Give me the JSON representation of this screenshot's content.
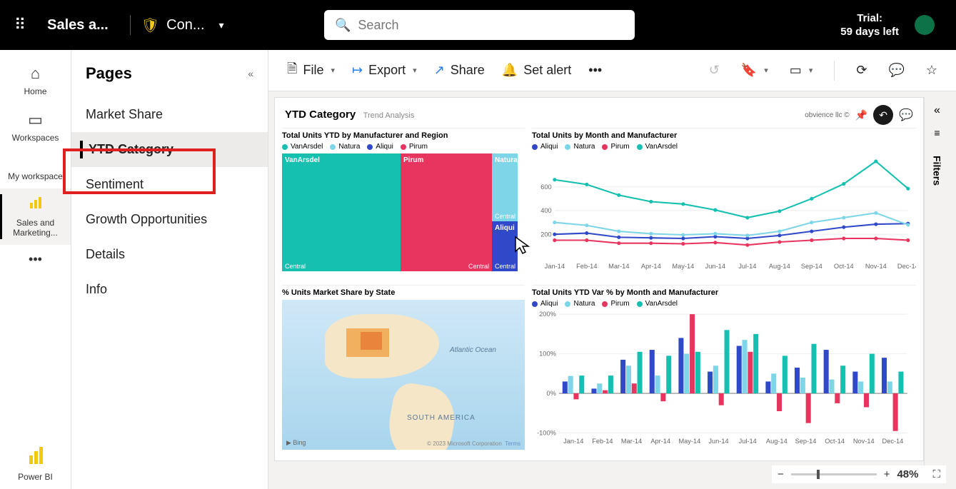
{
  "topbar": {
    "app_title": "Sales a...",
    "con_label": "Con...",
    "search_placeholder": "Search",
    "trial_line1": "Trial:",
    "trial_line2": "59 days left"
  },
  "navrail": {
    "home": "Home",
    "workspaces": "Workspaces",
    "my_workspace": "My workspace",
    "sales_marketing": "Sales and Marketing...",
    "powerbi": "Power BI"
  },
  "pages": {
    "title": "Pages",
    "items": [
      "Market Share",
      "YTD Category",
      "Sentiment",
      "Growth Opportunities",
      "Details",
      "Info"
    ],
    "selected_index": 1
  },
  "toolbar": {
    "file": "File",
    "export": "Export",
    "share": "Share",
    "set_alert": "Set alert"
  },
  "report": {
    "title": "YTD Category",
    "subtitle": "Trend Analysis",
    "attribution": "obvience llc ©"
  },
  "treemap_viz": {
    "title": "Total Units YTD by Manufacturer and Region",
    "legend": [
      {
        "label": "VanArsdel",
        "color": "#15c0b0"
      },
      {
        "label": "Natura",
        "color": "#7fd5e8"
      },
      {
        "label": "Aliqui",
        "color": "#3049c9"
      },
      {
        "label": "Pirum",
        "color": "#e8355f"
      }
    ],
    "cells": {
      "vanarsdel": {
        "label": "VanArsdel",
        "region": "Central",
        "color": "#15c0b0"
      },
      "natura": {
        "label": "Natura",
        "region": "Central",
        "color": "#7fd5e8"
      },
      "aliqui": {
        "label": "Aliqui",
        "region": "Central",
        "color": "#3049c9"
      },
      "pirum": {
        "label": "Pirum",
        "region": "Central",
        "color": "#e8355f"
      }
    }
  },
  "line_viz": {
    "title": "Total Units by Month and Manufacturer",
    "legend": [
      {
        "label": "Aliqui",
        "color": "#3049c9"
      },
      {
        "label": "Natura",
        "color": "#7fd5e8"
      },
      {
        "label": "Pirum",
        "color": "#e8355f"
      },
      {
        "label": "VanArsdel",
        "color": "#15c0b0"
      }
    ],
    "months": [
      "Jan-14",
      "Feb-14",
      "Mar-14",
      "Apr-14",
      "May-14",
      "Jun-14",
      "Jul-14",
      "Aug-14",
      "Sep-14",
      "Oct-14",
      "Nov-14",
      "Dec-14"
    ],
    "yticks": [
      200,
      400,
      600
    ],
    "series": {
      "VanArsdel": {
        "color": "#15c0b0",
        "values": [
          660,
          620,
          530,
          475,
          455,
          405,
          340,
          395,
          500,
          625,
          815,
          585
        ]
      },
      "Aliqui": {
        "color": "#3049c9",
        "values": [
          200,
          210,
          175,
          170,
          165,
          180,
          165,
          190,
          225,
          260,
          285,
          290
        ]
      },
      "Natura": {
        "color": "#7fd5e8",
        "values": [
          300,
          275,
          225,
          205,
          195,
          205,
          190,
          225,
          300,
          340,
          380,
          280
        ]
      },
      "Pirum": {
        "color": "#e8355f",
        "values": [
          150,
          150,
          125,
          125,
          120,
          130,
          110,
          135,
          150,
          165,
          165,
          150
        ]
      }
    }
  },
  "map_viz": {
    "title": "% Units Market Share by State",
    "ocean_label": "Atlantic Ocean",
    "continent_label": "SOUTH AMERICA",
    "bing": "Bing",
    "copyright": "© 2023 Microsoft Corporation",
    "terms": "Terms"
  },
  "bar_viz": {
    "title": "Total Units YTD Var % by Month and Manufacturer",
    "legend": [
      {
        "label": "Aliqui",
        "color": "#3049c9"
      },
      {
        "label": "Natura",
        "color": "#7fd5e8"
      },
      {
        "label": "Pirum",
        "color": "#e8355f"
      },
      {
        "label": "VanArsdel",
        "color": "#15c0b0"
      }
    ],
    "months": [
      "Jan-14",
      "Feb-14",
      "Mar-14",
      "Apr-14",
      "May-14",
      "Jun-14",
      "Jul-14",
      "Aug-14",
      "Sep-14",
      "Oct-14",
      "Nov-14",
      "Dec-14"
    ],
    "yticks": [
      "200%",
      "100%",
      "0%",
      "-100%"
    ],
    "series": [
      {
        "color": "#3049c9",
        "values": [
          30,
          12,
          85,
          110,
          140,
          55,
          120,
          30,
          65,
          110,
          55,
          90
        ]
      },
      {
        "color": "#7fd5e8",
        "values": [
          44,
          25,
          70,
          45,
          100,
          70,
          135,
          50,
          40,
          35,
          30,
          30
        ]
      },
      {
        "color": "#e8355f",
        "values": [
          -15,
          8,
          25,
          -20,
          200,
          -30,
          105,
          -45,
          -75,
          -25,
          -35,
          -95
        ]
      },
      {
        "color": "#15c0b0",
        "values": [
          45,
          45,
          105,
          95,
          105,
          160,
          150,
          95,
          125,
          70,
          100,
          55
        ]
      }
    ]
  },
  "filters": {
    "label": "Filters"
  },
  "zoom": {
    "label": "48%",
    "minus": "−",
    "plus": "+"
  }
}
